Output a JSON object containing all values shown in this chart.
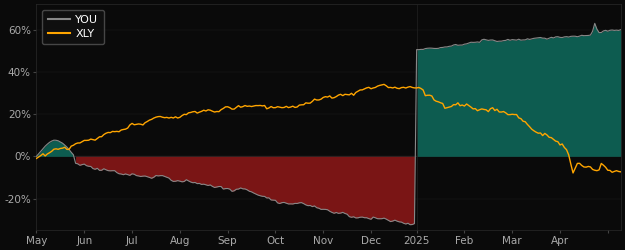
{
  "background_color": "#0a0a0a",
  "plot_bg_color": "#0a0a0a",
  "you_color": "#888888",
  "xly_color": "#FFA500",
  "fill_negative_color": "#7a1515",
  "fill_positive_color": "#0d5c50",
  "legend_edge_color": "#555555",
  "tick_color": "#aaaaaa",
  "grid_color": "#222222",
  "ylim": [
    -35,
    72
  ],
  "yticks": [
    -20,
    0,
    20,
    40,
    60
  ],
  "ytick_labels": [
    "-20%",
    "0%",
    "20%",
    "40%",
    "60%"
  ],
  "split_index": 175,
  "n_points": 270
}
